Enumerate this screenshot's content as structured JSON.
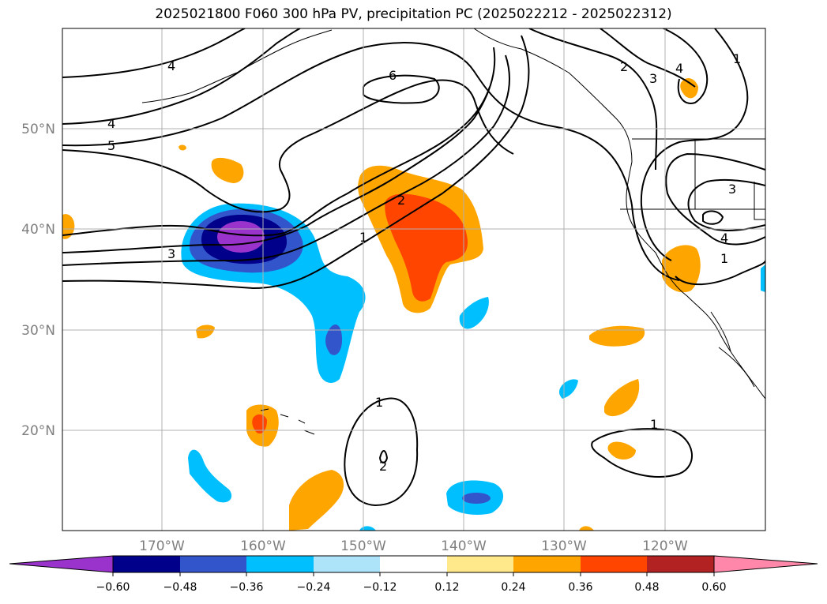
{
  "title": "2025021800 F060 300 hPa PV, precipitation PC (2025022212 - 2025022312)",
  "map": {
    "lat_labels": [
      "50°N",
      "40°N",
      "30°N",
      "20°N"
    ],
    "lon_labels": [
      "170°W",
      "160°W",
      "150°W",
      "140°W",
      "130°W",
      "120°W"
    ],
    "contour_labels": [
      "4",
      "4",
      "5",
      "6",
      "3",
      "2",
      "1",
      "3",
      "2",
      "4",
      "1",
      "3",
      "4",
      "1",
      "1",
      "2",
      "1"
    ]
  },
  "colorbar": {
    "ticks": [
      "−0.60",
      "−0.48",
      "−0.36",
      "−0.24",
      "−0.12",
      "0.12",
      "0.24",
      "0.36",
      "0.48",
      "0.60"
    ],
    "colors": [
      "#9933cc",
      "#00008b",
      "#3355cc",
      "#00bfff",
      "#aee4fa",
      "#ffffff",
      "#ffe98a",
      "#ffa500",
      "#ff4500",
      "#b22222",
      "#ff88aa"
    ]
  }
}
